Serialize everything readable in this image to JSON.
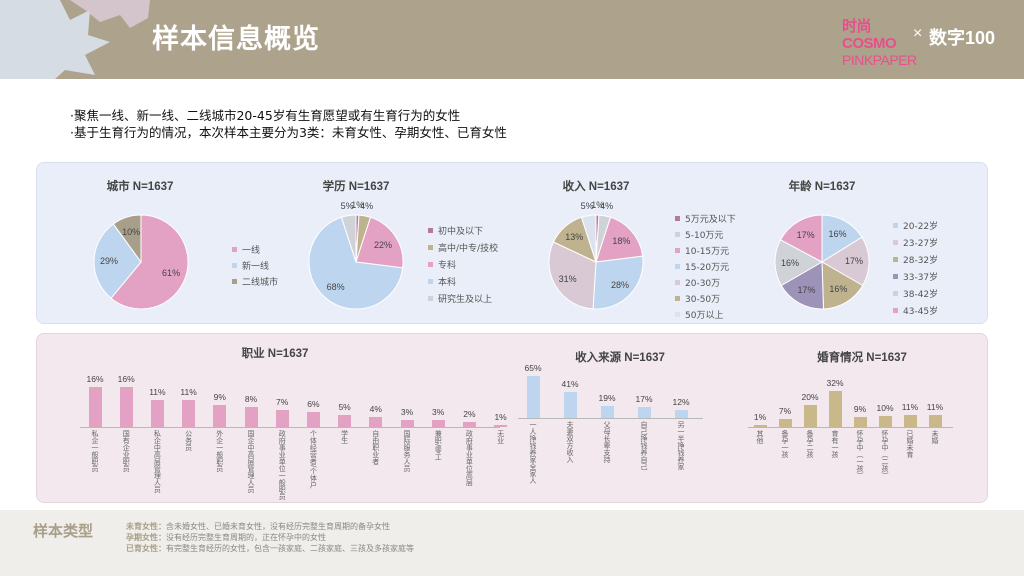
{
  "header": {
    "title": "样本信息概览",
    "logo_cosmo_line1": "时尚COSMO",
    "logo_cosmo_line2": "PINKPAPER",
    "logo_x": "×",
    "logo_shuzi": "数字100"
  },
  "bullets": [
    "·聚焦一线、新一线、二线城市20-45岁有生育愿望或有生育行为的女性",
    "·基于生育行为的情况，本次样本主要分为3类：未育女性、孕期女性、已育女性"
  ],
  "colors": {
    "pink": "#e3a1c3",
    "lightblue": "#bdd5ee",
    "brown": "#a89f8a",
    "darkpink": "#b07a98",
    "grey": "#cfd2d7",
    "purple": "#9d93b8",
    "tan": "#bfb28e",
    "header_bg": "#ada38d"
  },
  "chart_data": [
    {
      "id": "city",
      "type": "pie",
      "title": "城市 N=1637",
      "categories": [
        "一线",
        "新一线",
        "二线城市"
      ],
      "values": [
        61,
        29,
        10
      ],
      "labels": [
        "61%",
        "29%",
        "10%"
      ],
      "colors": [
        "#e3a1c3",
        "#bdd5ee",
        "#a89f8a"
      ],
      "legend": "right"
    },
    {
      "id": "education",
      "type": "pie",
      "title": "学历 N=1637",
      "categories": [
        "初中及以下",
        "高中/中专/技校",
        "专科",
        "本科",
        "研究生及以上"
      ],
      "values": [
        1,
        4,
        22,
        68,
        5
      ],
      "labels": [
        "1%",
        "4%",
        "22%",
        "68%",
        "5%"
      ],
      "colors": [
        "#b07a98",
        "#bfb28e",
        "#e3a1c3",
        "#bdd5ee",
        "#cfd2d7"
      ],
      "legend": "right"
    },
    {
      "id": "income",
      "type": "pie",
      "title": "收入 N=1637",
      "categories": [
        "5万元及以下",
        "5-10万元",
        "10-15万元",
        "15-20万元",
        "20-30万",
        "30-50万",
        "50万以上"
      ],
      "values": [
        1,
        4,
        18,
        28,
        31,
        13,
        5
      ],
      "labels": [
        "1%",
        "4%",
        "18%",
        "28%",
        "31%",
        "13%",
        "5%"
      ],
      "colors": [
        "#b07a98",
        "#cfd2d7",
        "#e3a1c3",
        "#bdd5ee",
        "#d8c9d5",
        "#bfb28e",
        "#dde3ee"
      ],
      "legend": "right"
    },
    {
      "id": "age",
      "type": "pie",
      "title": "年龄 N=1637",
      "categories": [
        "20-22岁",
        "23-27岁",
        "28-32岁",
        "33-37岁",
        "38-42岁",
        "43-45岁"
      ],
      "values": [
        16,
        17,
        16,
        17,
        16,
        17
      ],
      "labels": [
        "16%",
        "17%",
        "16%",
        "17%",
        "16%",
        "17%"
      ],
      "colors": [
        "#bdd5ee",
        "#d8c9d5",
        "#bfb28e",
        "#9d93b8",
        "#cfd2d7",
        "#e3a1c3"
      ],
      "legend": "right"
    },
    {
      "id": "occupation",
      "type": "bar",
      "title": "职业 N=1637",
      "categories": [
        "私企一般职员",
        "国有企业职员",
        "私企中高层管理人员",
        "公务员",
        "外企一般职员",
        "国企中高层管理人员",
        "政府事业单位一般职员",
        "个体经营者/个体户",
        "学生",
        "自由职业者",
        "国际服务人员",
        "兼职/零工",
        "政府事业单位高层"
      ],
      "values": [
        16,
        16,
        11,
        11,
        9,
        8,
        7,
        6,
        5,
        4,
        3,
        3,
        2
      ],
      "labels": [
        "16%",
        "16%",
        "11%",
        "11%",
        "9%",
        "8%",
        "7%",
        "6%",
        "5%",
        "4%",
        "3%",
        "3%",
        "2%",
        "1%"
      ],
      "extra_category": "无业",
      "extra_value": 1,
      "color": "#e3a1c3"
    },
    {
      "id": "income_source",
      "type": "bar",
      "title": "收入来源 N=1637",
      "categories": [
        "一人挣钱养家全家人",
        "夫妻双方收入",
        "父母长辈支持",
        "自己挣钱养自己",
        "另一半挣钱养家"
      ],
      "values": [
        65,
        41,
        19,
        17,
        12
      ],
      "labels": [
        "65%",
        "41%",
        "19%",
        "17%",
        "12%"
      ],
      "color": "#bdd5ee"
    },
    {
      "id": "marital",
      "type": "bar",
      "title": "婚育情况 N=1637",
      "categories": [
        "其他",
        "备孕一孩",
        "备孕二孩",
        "育有一孩",
        "怀孕中（一孩）",
        "怀孕中（二孩）",
        "已婚未育",
        "未婚"
      ],
      "values": [
        1,
        7,
        20,
        32,
        9,
        10,
        11,
        11
      ],
      "labels": [
        "1%",
        "7%",
        "20%",
        "32%",
        "9%",
        "10%",
        "11%",
        "11%"
      ],
      "color": "#c9b98a"
    }
  ],
  "sample_types": {
    "title": "样本类型",
    "lines": [
      {
        "label": "未育女性：",
        "text": "含未婚女性、已婚未育女性，没有经历完整生育周期的备孕女性"
      },
      {
        "label": "孕期女性：",
        "text": "没有经历完整生育周期的，正在怀孕中的女性"
      },
      {
        "label": "已育女性：",
        "text": "有完整生育经历的女性，包含一孩家庭、二孩家庭、三孩及多孩家庭等"
      }
    ]
  }
}
